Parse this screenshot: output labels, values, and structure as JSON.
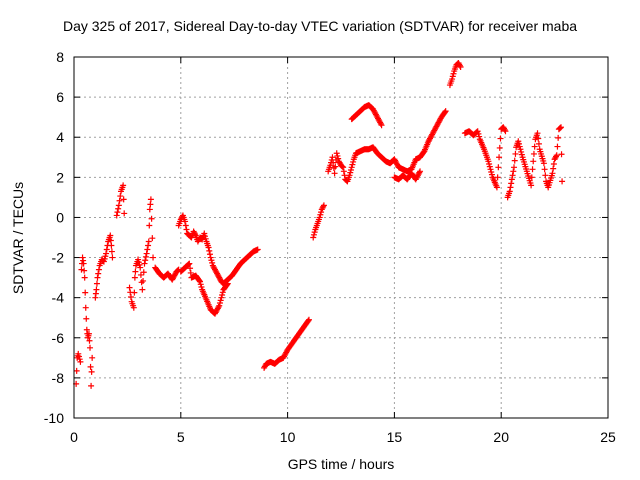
{
  "chart_data": {
    "type": "scatter",
    "title": "Day 325 of 2017, Sidereal Day-to-day VTEC variation (SDTVAR) for receiver maba",
    "xlabel": "GPS time / hours",
    "ylabel": "SDTVAR / TECUs",
    "xlim": [
      0,
      25
    ],
    "ylim": [
      -10,
      8
    ],
    "xticks": [
      0,
      5,
      10,
      15,
      20,
      25
    ],
    "xtick_labels": [
      "0",
      "5",
      "10",
      "15",
      "20",
      "25"
    ],
    "yticks": [
      -10,
      -8,
      -6,
      -4,
      -2,
      0,
      2,
      4,
      6,
      8
    ],
    "ytick_labels": [
      "-10",
      "-8",
      "-6",
      "-4",
      "-2",
      "0",
      "2",
      "4",
      "6",
      "8"
    ],
    "grid": true,
    "marker": "+",
    "color": "#ff0000",
    "series": [
      {
        "name": "SDTVAR",
        "segments": [
          [
            [
              0.1,
              -8.3
            ],
            [
              0.15,
              -7.0
            ],
            [
              0.2,
              -6.8
            ],
            [
              0.3,
              -7.2
            ]
          ],
          [
            [
              0.35,
              -2.6
            ],
            [
              0.4,
              -2.0
            ],
            [
              0.45,
              -2.3
            ],
            [
              0.5,
              -3.0
            ],
            [
              0.55,
              -4.5
            ],
            [
              0.6,
              -5.6
            ],
            [
              0.65,
              -6.0
            ],
            [
              0.7,
              -5.8
            ],
            [
              0.75,
              -6.5
            ],
            [
              0.8,
              -8.4
            ],
            [
              0.85,
              -7.0
            ]
          ],
          [
            [
              1.0,
              -4.0
            ],
            [
              1.05,
              -3.6
            ],
            [
              1.1,
              -3.0
            ],
            [
              1.2,
              -2.4
            ],
            [
              1.3,
              -2.1
            ],
            [
              1.4,
              -2.2
            ],
            [
              1.5,
              -1.8
            ],
            [
              1.6,
              -1.2
            ],
            [
              1.7,
              -0.9
            ],
            [
              1.75,
              -1.4
            ],
            [
              1.8,
              -2.0
            ]
          ],
          [
            [
              2.0,
              0.1
            ],
            [
              2.1,
              0.6
            ],
            [
              2.2,
              1.3
            ],
            [
              2.3,
              1.6
            ],
            [
              2.35,
              0.2
            ]
          ],
          [
            [
              2.6,
              -3.5
            ],
            [
              2.7,
              -4.2
            ],
            [
              2.8,
              -4.5
            ],
            [
              2.85,
              -3.0
            ],
            [
              2.9,
              -2.4
            ],
            [
              3.0,
              -2.1
            ],
            [
              3.1,
              -2.5
            ],
            [
              3.2,
              -3.6
            ],
            [
              3.3,
              -2.3
            ],
            [
              3.4,
              -1.8
            ],
            [
              3.5,
              -1.2
            ],
            [
              3.55,
              0.4
            ],
            [
              3.6,
              0.9
            ],
            [
              3.7,
              -2.0
            ]
          ],
          [
            [
              3.8,
              -2.5
            ],
            [
              4.0,
              -2.8
            ],
            [
              4.2,
              -3.0
            ],
            [
              4.4,
              -2.8
            ],
            [
              4.6,
              -3.1
            ],
            [
              4.8,
              -2.7
            ],
            [
              4.9,
              -2.6
            ]
          ],
          [
            [
              4.9,
              -0.4
            ],
            [
              5.0,
              -0.1
            ],
            [
              5.1,
              0.1
            ],
            [
              5.2,
              -0.2
            ],
            [
              5.3,
              -0.8
            ],
            [
              5.4,
              -0.9
            ],
            [
              5.5,
              -1.0
            ],
            [
              5.6,
              -0.7
            ],
            [
              5.7,
              -0.9
            ],
            [
              5.8,
              -1.2
            ],
            [
              5.9,
              -1.0
            ],
            [
              6.0,
              -1.1
            ],
            [
              6.1,
              -0.8
            ],
            [
              6.2,
              -1.2
            ],
            [
              6.3,
              -1.5
            ],
            [
              6.4,
              -2.0
            ],
            [
              6.5,
              -2.4
            ],
            [
              6.6,
              -2.6
            ],
            [
              6.7,
              -2.8
            ],
            [
              6.8,
              -3.0
            ],
            [
              6.9,
              -3.2
            ],
            [
              7.0,
              -3.3
            ],
            [
              7.2,
              -3.1
            ],
            [
              7.4,
              -2.9
            ],
            [
              7.6,
              -2.6
            ],
            [
              7.8,
              -2.3
            ],
            [
              8.0,
              -2.1
            ],
            [
              8.2,
              -1.9
            ],
            [
              8.4,
              -1.7
            ],
            [
              8.6,
              -1.6
            ]
          ],
          [
            [
              5.0,
              -2.7
            ],
            [
              5.2,
              -2.5
            ],
            [
              5.4,
              -2.3
            ],
            [
              5.5,
              -3.0
            ],
            [
              5.7,
              -2.9
            ],
            [
              5.9,
              -3.2
            ],
            [
              6.0,
              -3.6
            ],
            [
              6.2,
              -4.1
            ],
            [
              6.4,
              -4.6
            ],
            [
              6.6,
              -4.8
            ],
            [
              6.8,
              -4.4
            ],
            [
              7.0,
              -3.6
            ],
            [
              7.2,
              -3.3
            ]
          ],
          [
            [
              8.9,
              -7.5
            ],
            [
              9.0,
              -7.3
            ],
            [
              9.2,
              -7.2
            ],
            [
              9.4,
              -7.3
            ],
            [
              9.6,
              -7.1
            ],
            [
              9.8,
              -7.0
            ],
            [
              10.0,
              -6.6
            ],
            [
              10.2,
              -6.3
            ],
            [
              10.4,
              -6.0
            ],
            [
              10.6,
              -5.7
            ],
            [
              10.8,
              -5.4
            ],
            [
              11.0,
              -5.1
            ]
          ],
          [
            [
              11.2,
              -1.0
            ],
            [
              11.3,
              -0.6
            ],
            [
              11.4,
              -0.3
            ],
            [
              11.5,
              0.0
            ],
            [
              11.6,
              0.4
            ],
            [
              11.7,
              0.6
            ]
          ],
          [
            [
              11.9,
              2.3
            ],
            [
              12.0,
              2.6
            ],
            [
              12.1,
              3.0
            ],
            [
              12.2,
              2.2
            ],
            [
              12.3,
              3.2
            ],
            [
              12.4,
              2.8
            ],
            [
              12.5,
              2.6
            ],
            [
              12.6,
              2.5
            ],
            [
              12.7,
              1.9
            ],
            [
              12.8,
              1.8
            ],
            [
              12.9,
              2.1
            ],
            [
              13.0,
              2.5
            ],
            [
              13.1,
              2.9
            ],
            [
              13.2,
              3.2
            ],
            [
              13.4,
              3.3
            ],
            [
              13.6,
              3.4
            ],
            [
              13.8,
              3.4
            ],
            [
              14.0,
              3.5
            ],
            [
              14.2,
              3.2
            ],
            [
              14.4,
              3.0
            ],
            [
              14.6,
              2.8
            ],
            [
              14.8,
              2.7
            ],
            [
              15.0,
              2.9
            ],
            [
              15.2,
              2.5
            ],
            [
              15.4,
              2.4
            ],
            [
              15.6,
              2.3
            ],
            [
              15.8,
              2.4
            ],
            [
              16.0,
              2.9
            ],
            [
              16.2,
              3.0
            ],
            [
              16.4,
              3.3
            ],
            [
              16.6,
              3.8
            ],
            [
              16.8,
              4.2
            ],
            [
              17.0,
              4.6
            ],
            [
              17.2,
              5.0
            ],
            [
              17.4,
              5.3
            ]
          ],
          [
            [
              13.0,
              4.9
            ],
            [
              13.2,
              5.1
            ],
            [
              13.4,
              5.3
            ],
            [
              13.6,
              5.5
            ],
            [
              13.8,
              5.6
            ],
            [
              14.0,
              5.4
            ],
            [
              14.2,
              5.0
            ],
            [
              14.4,
              4.6
            ]
          ],
          [
            [
              15.0,
              2.0
            ],
            [
              15.2,
              1.9
            ],
            [
              15.4,
              2.1
            ],
            [
              15.6,
              1.9
            ],
            [
              15.8,
              2.2
            ],
            [
              16.0,
              1.9
            ],
            [
              16.2,
              2.3
            ]
          ],
          [
            [
              17.6,
              6.6
            ],
            [
              17.7,
              6.9
            ],
            [
              17.8,
              7.3
            ],
            [
              17.9,
              7.6
            ],
            [
              18.0,
              7.7
            ],
            [
              18.1,
              7.5
            ]
          ],
          [
            [
              18.3,
              4.2
            ],
            [
              18.5,
              4.3
            ],
            [
              18.7,
              4.1
            ],
            [
              18.9,
              4.3
            ],
            [
              19.0,
              3.9
            ],
            [
              19.2,
              3.4
            ],
            [
              19.4,
              2.8
            ],
            [
              19.6,
              2.0
            ],
            [
              19.8,
              1.5
            ],
            [
              19.9,
              3.0
            ],
            [
              20.0,
              4.4
            ],
            [
              20.1,
              4.5
            ],
            [
              20.2,
              4.3
            ]
          ],
          [
            [
              20.3,
              1.0
            ],
            [
              20.4,
              1.3
            ],
            [
              20.5,
              1.9
            ],
            [
              20.6,
              2.5
            ],
            [
              20.7,
              3.5
            ],
            [
              20.8,
              3.8
            ],
            [
              21.0,
              3.0
            ],
            [
              21.2,
              2.3
            ],
            [
              21.4,
              1.6
            ],
            [
              21.5,
              2.8
            ],
            [
              21.6,
              3.9
            ],
            [
              21.7,
              4.2
            ],
            [
              21.8,
              3.4
            ],
            [
              22.0,
              2.7
            ],
            [
              22.1,
              1.8
            ],
            [
              22.2,
              1.5
            ],
            [
              22.4,
              2.2
            ],
            [
              22.5,
              2.9
            ],
            [
              22.6,
              3.1
            ],
            [
              22.7,
              4.4
            ],
            [
              22.8,
              4.5
            ],
            [
              22.85,
              1.8
            ]
          ]
        ]
      }
    ]
  }
}
